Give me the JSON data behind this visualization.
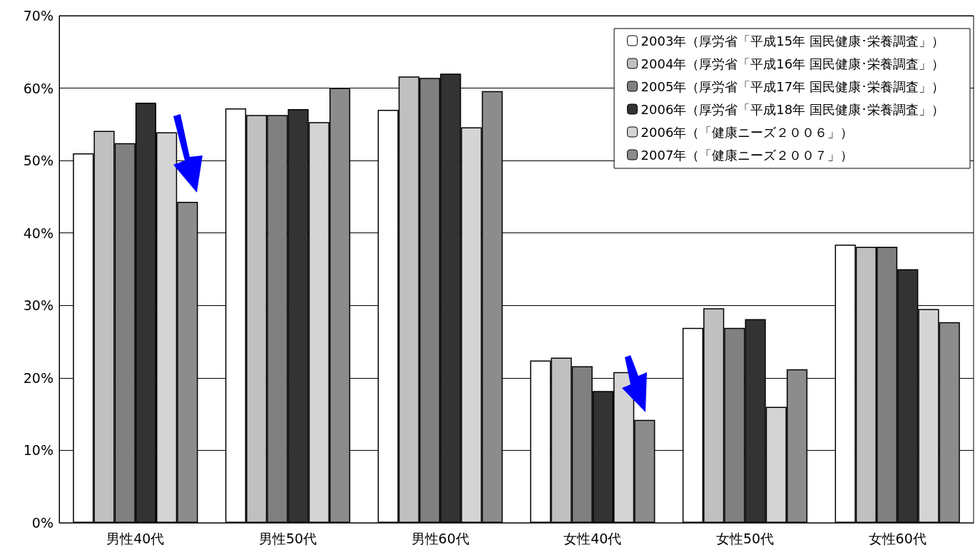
{
  "chart_data": {
    "type": "bar",
    "categories": [
      "男性40代",
      "男性50代",
      "男性60代",
      "女性40代",
      "女性50代",
      "女性60代"
    ],
    "series": [
      {
        "name": "2003年（厚労省「平成15年 国民健康･栄養調査」）",
        "color": "#ffffff",
        "values": [
          51.0,
          57.2,
          57.0,
          22.4,
          26.9,
          38.4
        ]
      },
      {
        "name": "2004年（厚労省「平成16年 国民健康･栄養調査」）",
        "color": "#c0c0c0",
        "values": [
          54.1,
          56.3,
          61.6,
          22.8,
          29.6,
          38.1
        ]
      },
      {
        "name": "2005年（厚労省「平成17年 国民健康･栄養調査」）",
        "color": "#808080",
        "values": [
          52.4,
          56.3,
          61.4,
          21.6,
          26.9,
          38.1
        ]
      },
      {
        "name": "2006年（厚労省「平成18年 国民健康･栄養調査」）",
        "color": "#333333",
        "values": [
          58.0,
          57.1,
          62.0,
          18.2,
          28.1,
          35.0
        ]
      },
      {
        "name": "2006年（「健康ニーズ２００６」）",
        "color": "#d4d4d4",
        "values": [
          53.9,
          55.3,
          54.6,
          20.8,
          16.0,
          29.5
        ]
      },
      {
        "name": "2007年（「健康ニーズ２００７」）",
        "color": "#8c8c8c",
        "values": [
          44.3,
          60.0,
          59.6,
          14.2,
          21.2,
          27.7
        ]
      }
    ],
    "ylim": [
      0,
      70
    ],
    "yticks": [
      {
        "value": 0,
        "label": "0%"
      },
      {
        "value": 10,
        "label": "10%"
      },
      {
        "value": 20,
        "label": "20%"
      },
      {
        "value": 30,
        "label": "30%"
      },
      {
        "value": 40,
        "label": "40%"
      },
      {
        "value": 50,
        "label": "50%"
      },
      {
        "value": 60,
        "label": "60%"
      },
      {
        "value": 70,
        "label": "70%"
      }
    ],
    "grid": "y",
    "legend": "top right"
  }
}
